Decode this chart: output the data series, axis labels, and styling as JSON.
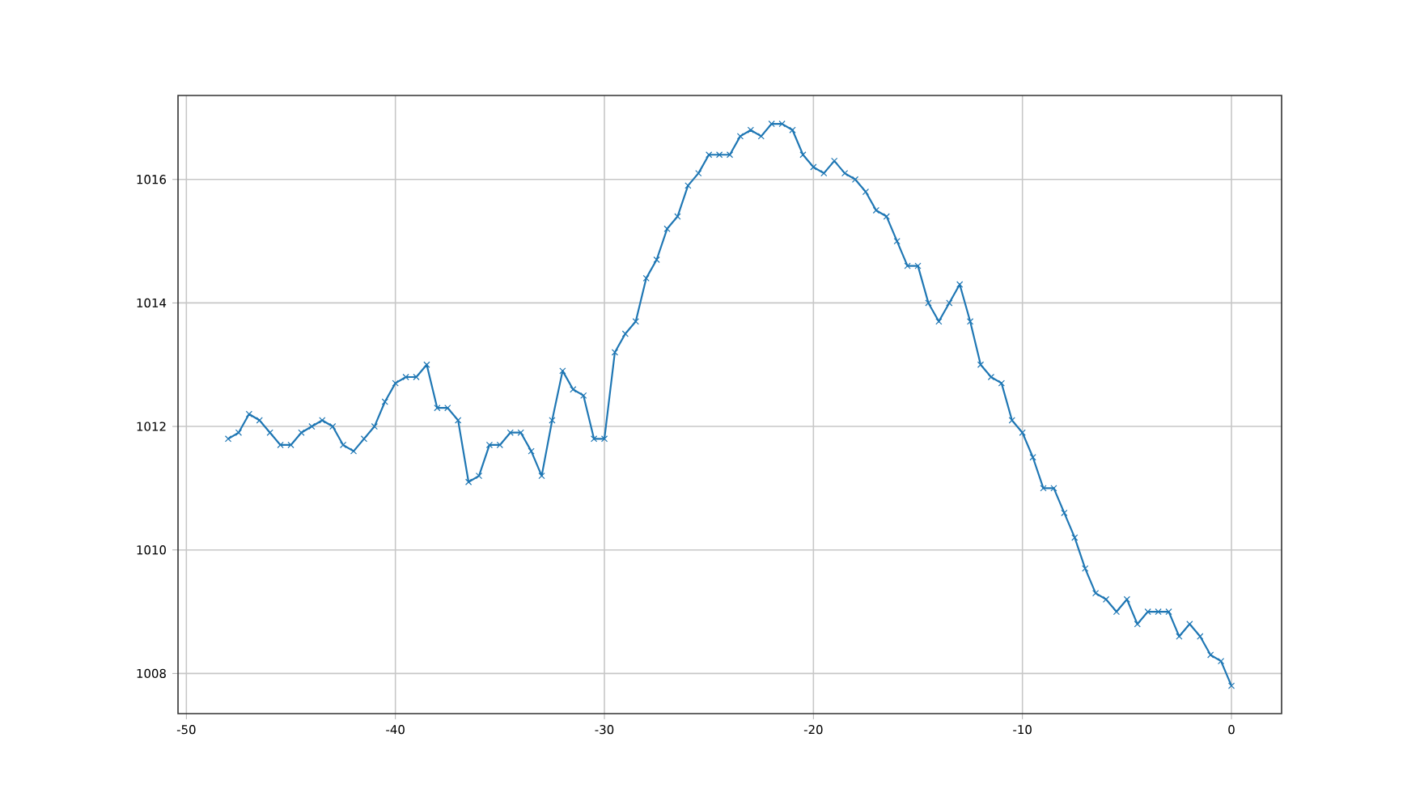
{
  "chart_data": {
    "type": "line",
    "color": "#1f77b4",
    "marker": "cross",
    "line_style": "solid",
    "grid": true,
    "x": [
      -48,
      -47.5,
      -47,
      -46.5,
      -46,
      -45.5,
      -45,
      -44.5,
      -44,
      -43.5,
      -43,
      -42.5,
      -42,
      -41.5,
      -41,
      -40.5,
      -40,
      -39.5,
      -39,
      -38.5,
      -38,
      -37.5,
      -37,
      -36.5,
      -36,
      -35.5,
      -35,
      -34.5,
      -34,
      -33.5,
      -33,
      -32.5,
      -32,
      -31.5,
      -31,
      -30.5,
      -30,
      -29.5,
      -29,
      -28.5,
      -28,
      -27.5,
      -27,
      -26.5,
      -26,
      -25.5,
      -25,
      -24.5,
      -24,
      -23.5,
      -23,
      -22.5,
      -22,
      -21.5,
      -21,
      -20.5,
      -20,
      -19.5,
      -19,
      -18.5,
      -18,
      -17.5,
      -17,
      -16.5,
      -16,
      -15.5,
      -15,
      -14.5,
      -14,
      -13.5,
      -13,
      -12.5,
      -12,
      -11.5,
      -11,
      -10.5,
      -10,
      -9.5,
      -9,
      -8.5,
      -8,
      -7.5,
      -7,
      -6.5,
      -6,
      -5.5,
      -5,
      -4.5,
      -4,
      -3.5,
      -3,
      -2.5,
      -2,
      -1.5,
      -1,
      -0.5,
      0
    ],
    "values": [
      1011.8,
      1011.9,
      1012.2,
      1012.1,
      1011.9,
      1011.7,
      1011.7,
      1011.9,
      1012.0,
      1012.1,
      1012.0,
      1011.7,
      1011.6,
      1011.8,
      1012.0,
      1012.4,
      1012.7,
      1012.8,
      1012.8,
      1013.0,
      1012.3,
      1012.3,
      1012.1,
      1011.1,
      1011.2,
      1011.7,
      1011.7,
      1011.9,
      1011.9,
      1011.6,
      1011.2,
      1012.1,
      1012.9,
      1012.6,
      1012.5,
      1011.8,
      1011.8,
      1013.2,
      1013.5,
      1013.7,
      1014.4,
      1014.7,
      1015.2,
      1015.4,
      1015.9,
      1016.1,
      1016.4,
      1016.4,
      1016.4,
      1016.7,
      1016.8,
      1016.7,
      1016.9,
      1016.9,
      1016.8,
      1016.4,
      1016.2,
      1016.1,
      1016.3,
      1016.1,
      1016.0,
      1015.8,
      1015.5,
      1015.4,
      1015.0,
      1014.6,
      1014.6,
      1014.0,
      1013.7,
      1014.0,
      1014.3,
      1013.7,
      1013.0,
      1012.8,
      1012.7,
      1012.1,
      1011.9,
      1011.5,
      1011.0,
      1011.0,
      1010.6,
      1010.2,
      1009.7,
      1009.3,
      1009.2,
      1009.0,
      1009.2,
      1008.8,
      1009.0,
      1009.0,
      1009.0,
      1008.6,
      1008.8,
      1008.6,
      1008.3,
      1008.2,
      1007.8
    ],
    "xlim": [
      -50.4,
      2.4
    ],
    "ylim": [
      1007.35,
      1017.36
    ],
    "xticks": [
      -50,
      -40,
      -30,
      -20,
      -10,
      0
    ],
    "yticks": [
      1008,
      1010,
      1012,
      1014,
      1016
    ]
  }
}
